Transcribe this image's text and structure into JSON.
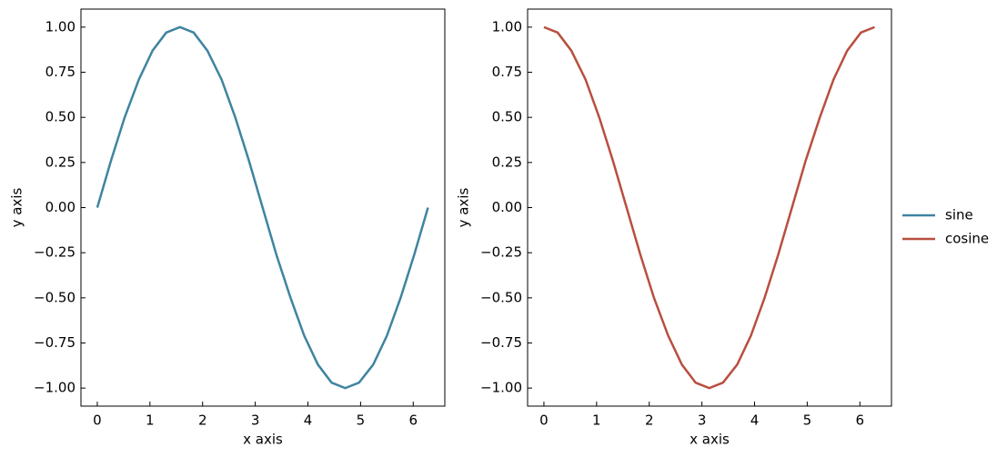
{
  "chart_data": [
    {
      "type": "line",
      "x_label": "x axis",
      "y_label": "y axis",
      "x": [
        0,
        0.26,
        0.52,
        0.79,
        1.05,
        1.31,
        1.57,
        1.83,
        2.09,
        2.36,
        2.62,
        2.88,
        3.14,
        3.4,
        3.67,
        3.93,
        4.19,
        4.45,
        4.71,
        4.97,
        5.24,
        5.5,
        5.76,
        6.02,
        6.28
      ],
      "series": [
        {
          "name": "sine",
          "color": "#3f84a0",
          "values": [
            0,
            0.26,
            0.5,
            0.71,
            0.87,
            0.97,
            1,
            0.97,
            0.87,
            0.71,
            0.5,
            0.26,
            0,
            -0.26,
            -0.5,
            -0.71,
            -0.87,
            -0.97,
            -1,
            -0.97,
            -0.87,
            -0.71,
            -0.5,
            -0.26,
            0
          ]
        }
      ],
      "xlim": [
        -0.31,
        6.6
      ],
      "ylim": [
        -1.1,
        1.1
      ],
      "xticks": [
        0,
        1,
        2,
        3,
        4,
        5,
        6
      ],
      "yticks": [
        {
          "value": 1,
          "label": "1.00"
        },
        {
          "value": 0.75,
          "label": "0.75"
        },
        {
          "value": 0.5,
          "label": "0.50"
        },
        {
          "value": 0.25,
          "label": "0.25"
        },
        {
          "value": 0,
          "label": "0.00"
        },
        {
          "value": -0.25,
          "label": "−0.25"
        },
        {
          "value": -0.5,
          "label": "−0.50"
        },
        {
          "value": -0.75,
          "label": "−0.75"
        },
        {
          "value": -1,
          "label": "−1.00"
        }
      ]
    },
    {
      "type": "line",
      "x_label": "x axis",
      "y_label": "y axis",
      "x": [
        0,
        0.26,
        0.52,
        0.79,
        1.05,
        1.31,
        1.57,
        1.83,
        2.09,
        2.36,
        2.62,
        2.88,
        3.14,
        3.4,
        3.67,
        3.93,
        4.19,
        4.45,
        4.71,
        4.97,
        5.24,
        5.5,
        5.76,
        6.02,
        6.28
      ],
      "series": [
        {
          "name": "cosine",
          "color": "#b84f3f",
          "values": [
            1,
            0.97,
            0.87,
            0.71,
            0.5,
            0.26,
            0,
            -0.26,
            -0.5,
            -0.71,
            -0.87,
            -0.97,
            -1,
            -0.97,
            -0.87,
            -0.71,
            -0.5,
            -0.26,
            0,
            0.26,
            0.5,
            0.71,
            0.87,
            0.97,
            1
          ]
        }
      ],
      "xlim": [
        -0.31,
        6.6
      ],
      "ylim": [
        -1.1,
        1.1
      ],
      "xticks": [
        0,
        1,
        2,
        3,
        4,
        5,
        6
      ],
      "yticks": [
        {
          "value": 1,
          "label": "1.00"
        },
        {
          "value": 0.75,
          "label": "0.75"
        },
        {
          "value": 0.5,
          "label": "0.50"
        },
        {
          "value": 0.25,
          "label": "0.25"
        },
        {
          "value": 0,
          "label": "0.00"
        },
        {
          "value": -0.25,
          "label": "−0.25"
        },
        {
          "value": -0.5,
          "label": "−0.50"
        },
        {
          "value": -0.75,
          "label": "−0.75"
        },
        {
          "value": -1,
          "label": "−1.00"
        }
      ]
    }
  ]
}
